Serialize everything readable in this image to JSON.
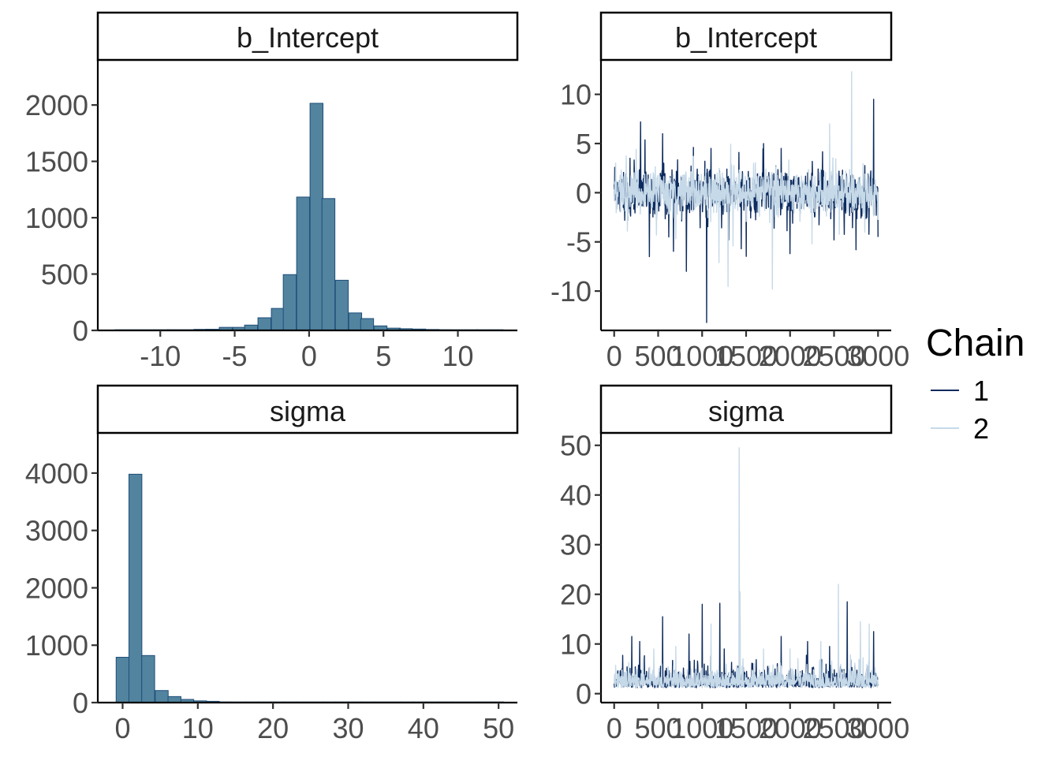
{
  "legend": {
    "title": "Chain",
    "items": [
      {
        "label": "1",
        "color": "#0d2b5e"
      },
      {
        "label": "2",
        "color": "#c6d9e8"
      }
    ]
  },
  "colors": {
    "hist_fill": "#52849f",
    "hist_stroke": "#1f4e7a"
  },
  "chart_data": [
    {
      "type": "bar",
      "panel": "histogram",
      "strip_title": "b_Intercept",
      "xlabel": "",
      "ylabel": "",
      "xlim": [
        -14.2,
        14.0
      ],
      "ylim": [
        0,
        2400
      ],
      "x_ticks": [
        -10,
        -5,
        0,
        5,
        10
      ],
      "x_tick_labels": [
        "-10",
        "-5",
        "0",
        "5",
        "10"
      ],
      "y_ticks": [
        0,
        500,
        1000,
        1500,
        2000
      ],
      "y_tick_labels": [
        "0",
        "500",
        "1000",
        "1500",
        "2000"
      ],
      "bin_width": 0.87,
      "bin_centers": [
        -12.6,
        -11.7,
        -10.8,
        -9.9,
        -9.1,
        -8.2,
        -7.3,
        -6.5,
        -5.6,
        -4.7,
        -3.9,
        -3.0,
        -2.1,
        -1.3,
        -0.4,
        0.5,
        1.3,
        2.2,
        3.1,
        3.9,
        4.8,
        5.7,
        6.5,
        7.4,
        8.3,
        9.1,
        10.0,
        10.9,
        11.7,
        12.6
      ],
      "values": [
        3,
        2,
        3,
        4,
        6,
        6,
        9,
        10,
        27,
        27,
        47,
        112,
        195,
        495,
        1183,
        2015,
        1170,
        445,
        155,
        105,
        40,
        20,
        15,
        12,
        8,
        6,
        5,
        4,
        2,
        2
      ]
    },
    {
      "type": "line",
      "panel": "trace",
      "strip_title": "b_Intercept",
      "xlabel": "",
      "ylabel": "",
      "xlim": [
        -150,
        3150
      ],
      "ylim": [
        -14,
        13.5
      ],
      "x_ticks": [
        0,
        500,
        1000,
        1500,
        2000,
        2500,
        3000
      ],
      "x_tick_labels": [
        "0",
        "500",
        "1000",
        "1500",
        "2000",
        "2500",
        "3000"
      ],
      "y_ticks": [
        -10,
        -5,
        0,
        5,
        10
      ],
      "y_tick_labels": [
        "-10",
        "-5",
        "0",
        "5",
        "10"
      ],
      "iterations": 3000,
      "series": [
        {
          "name": "1",
          "spikes": [
            [
              120,
              -2.8
            ],
            [
              180,
              3.5
            ],
            [
              300,
              7.2
            ],
            [
              400,
              -6.5
            ],
            [
              550,
              6.0
            ],
            [
              620,
              -4.5
            ],
            [
              820,
              -8.0
            ],
            [
              1050,
              -13.2
            ],
            [
              1100,
              4.5
            ],
            [
              1300,
              -4.8
            ],
            [
              1700,
              5.0
            ],
            [
              1900,
              4.5
            ],
            [
              2000,
              -6.2
            ],
            [
              2500,
              -4.8
            ],
            [
              2750,
              -5.8
            ],
            [
              2950,
              9.5
            ],
            [
              3000,
              -4.5
            ]
          ]
        },
        {
          "name": "2",
          "spikes": [
            [
              80,
              2.3
            ],
            [
              150,
              -3.9
            ],
            [
              250,
              4.4
            ],
            [
              480,
              -4.3
            ],
            [
              700,
              -4.7
            ],
            [
              900,
              3.7
            ],
            [
              1350,
              -5.4
            ],
            [
              1800,
              -9.8
            ],
            [
              2250,
              -5.2
            ],
            [
              2450,
              7.0
            ],
            [
              2700,
              12.3
            ],
            [
              2850,
              -4.0
            ]
          ]
        }
      ]
    },
    {
      "type": "bar",
      "panel": "histogram",
      "strip_title": "sigma",
      "xlabel": "",
      "ylabel": "",
      "xlim": [
        -3.3,
        52.5
      ],
      "ylim": [
        0,
        4700
      ],
      "x_ticks": [
        0,
        10,
        20,
        30,
        40,
        50
      ],
      "x_tick_labels": [
        "0",
        "10",
        "20",
        "30",
        "40",
        "50"
      ],
      "y_ticks": [
        0,
        1000,
        2000,
        3000,
        4000
      ],
      "y_tick_labels": [
        "0",
        "1000",
        "2000",
        "3000",
        "4000"
      ],
      "bin_width": 1.72,
      "bin_centers": [
        0.0,
        1.7,
        3.4,
        5.2,
        6.9,
        8.6,
        10.3,
        12.0,
        13.7,
        15.5,
        17.2,
        18.9,
        20.6,
        22.3,
        24.0,
        25.8,
        27.5,
        29.2,
        30.9,
        32.6,
        34.3,
        36.1,
        37.8,
        39.5,
        41.2,
        42.9,
        44.6,
        46.4,
        48.1,
        49.8
      ],
      "values": [
        790,
        3980,
        820,
        210,
        105,
        55,
        30,
        22,
        12,
        10,
        8,
        6,
        5,
        4,
        3,
        3,
        2,
        2,
        2,
        1,
        1,
        1,
        1,
        1,
        1,
        1,
        1,
        1,
        1,
        1
      ]
    },
    {
      "type": "line",
      "panel": "trace",
      "strip_title": "sigma",
      "xlabel": "",
      "ylabel": "",
      "xlim": [
        -150,
        3150
      ],
      "ylim": [
        -1.8,
        52.5
      ],
      "x_ticks": [
        0,
        500,
        1000,
        1500,
        2000,
        2500,
        3000
      ],
      "x_tick_labels": [
        "0",
        "500",
        "1000",
        "1500",
        "2000",
        "2500",
        "3000"
      ],
      "y_ticks": [
        0,
        10,
        20,
        30,
        40,
        50
      ],
      "y_tick_labels": [
        "0",
        "10",
        "20",
        "30",
        "40",
        "50"
      ],
      "iterations": 3000,
      "series": [
        {
          "name": "1",
          "spikes": [
            [
              200,
              11.5
            ],
            [
              290,
              10.5
            ],
            [
              550,
              15.5
            ],
            [
              850,
              12.0
            ],
            [
              1000,
              18.0
            ],
            [
              1200,
              18.2
            ],
            [
              1250,
              9.0
            ],
            [
              1900,
              11.5
            ],
            [
              2200,
              10.5
            ],
            [
              2450,
              9.5
            ],
            [
              2650,
              18.5
            ],
            [
              2950,
              12.5
            ]
          ]
        },
        {
          "name": "2",
          "spikes": [
            [
              450,
              9.0
            ],
            [
              700,
              9.5
            ],
            [
              1100,
              14.0
            ],
            [
              1420,
              49.5
            ],
            [
              1430,
              20.5
            ],
            [
              1700,
              9.0
            ],
            [
              2000,
              9.0
            ],
            [
              2350,
              10.5
            ],
            [
              2550,
              22.0
            ],
            [
              2800,
              14.5
            ],
            [
              2900,
              14.0
            ]
          ]
        }
      ]
    }
  ]
}
